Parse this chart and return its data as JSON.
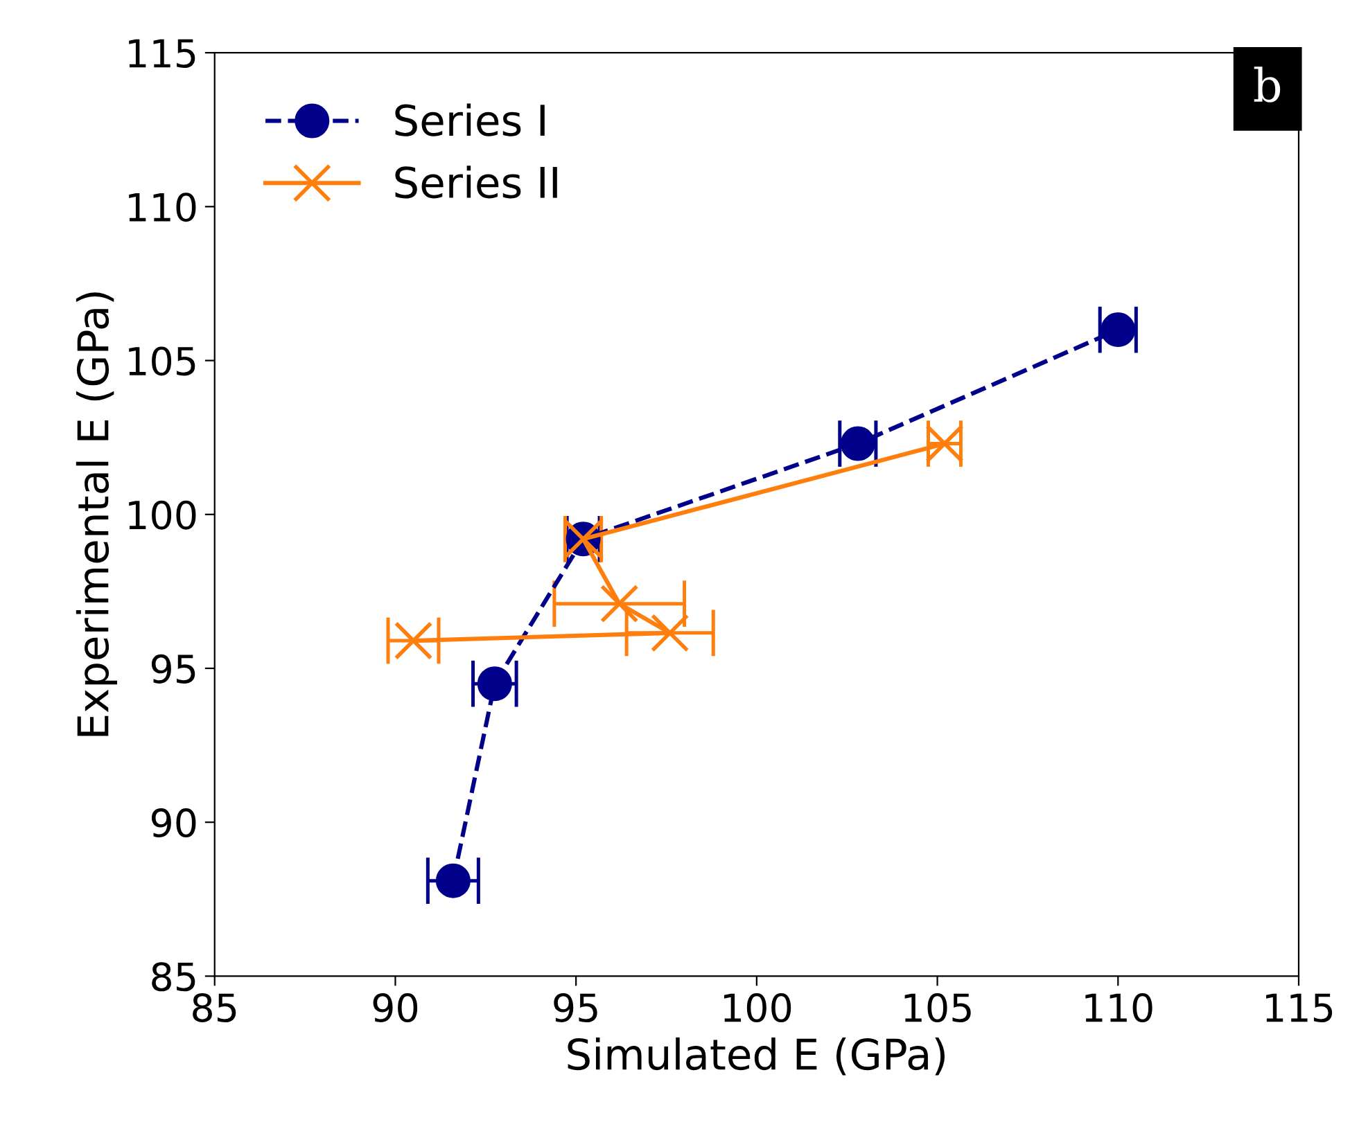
{
  "chart_data": {
    "type": "line",
    "xlabel": "Simulated E (GPa)",
    "ylabel": "Experimental E (GPa)",
    "annotations": [
      "b"
    ],
    "xlim": [
      85,
      115
    ],
    "ylim": [
      85,
      115
    ],
    "xticks": [
      85,
      90,
      95,
      100,
      105,
      110,
      115
    ],
    "yticks": [
      85,
      90,
      95,
      100,
      105,
      110,
      115
    ],
    "grid": false,
    "legend": "top left",
    "series": [
      {
        "name": "Series I",
        "color": "#00008b",
        "marker": "circle",
        "line_style": "dashed",
        "x": [
          91.6,
          92.75,
          95.2,
          102.8,
          110.0
        ],
        "values": [
          88.1,
          94.5,
          99.2,
          102.3,
          106.0
        ],
        "xerrors": [
          0.7,
          0.6,
          0.45,
          0.5,
          0.5
        ]
      },
      {
        "name": "Series II",
        "color": "#ff7f0e",
        "marker": "cross",
        "line_style": "solid",
        "x": [
          90.5,
          97.6,
          96.2,
          95.2,
          105.2
        ],
        "values": [
          95.9,
          96.15,
          97.1,
          99.2,
          102.3
        ],
        "xerrors": [
          0.7,
          1.2,
          1.8,
          0.5,
          0.45
        ]
      }
    ]
  }
}
